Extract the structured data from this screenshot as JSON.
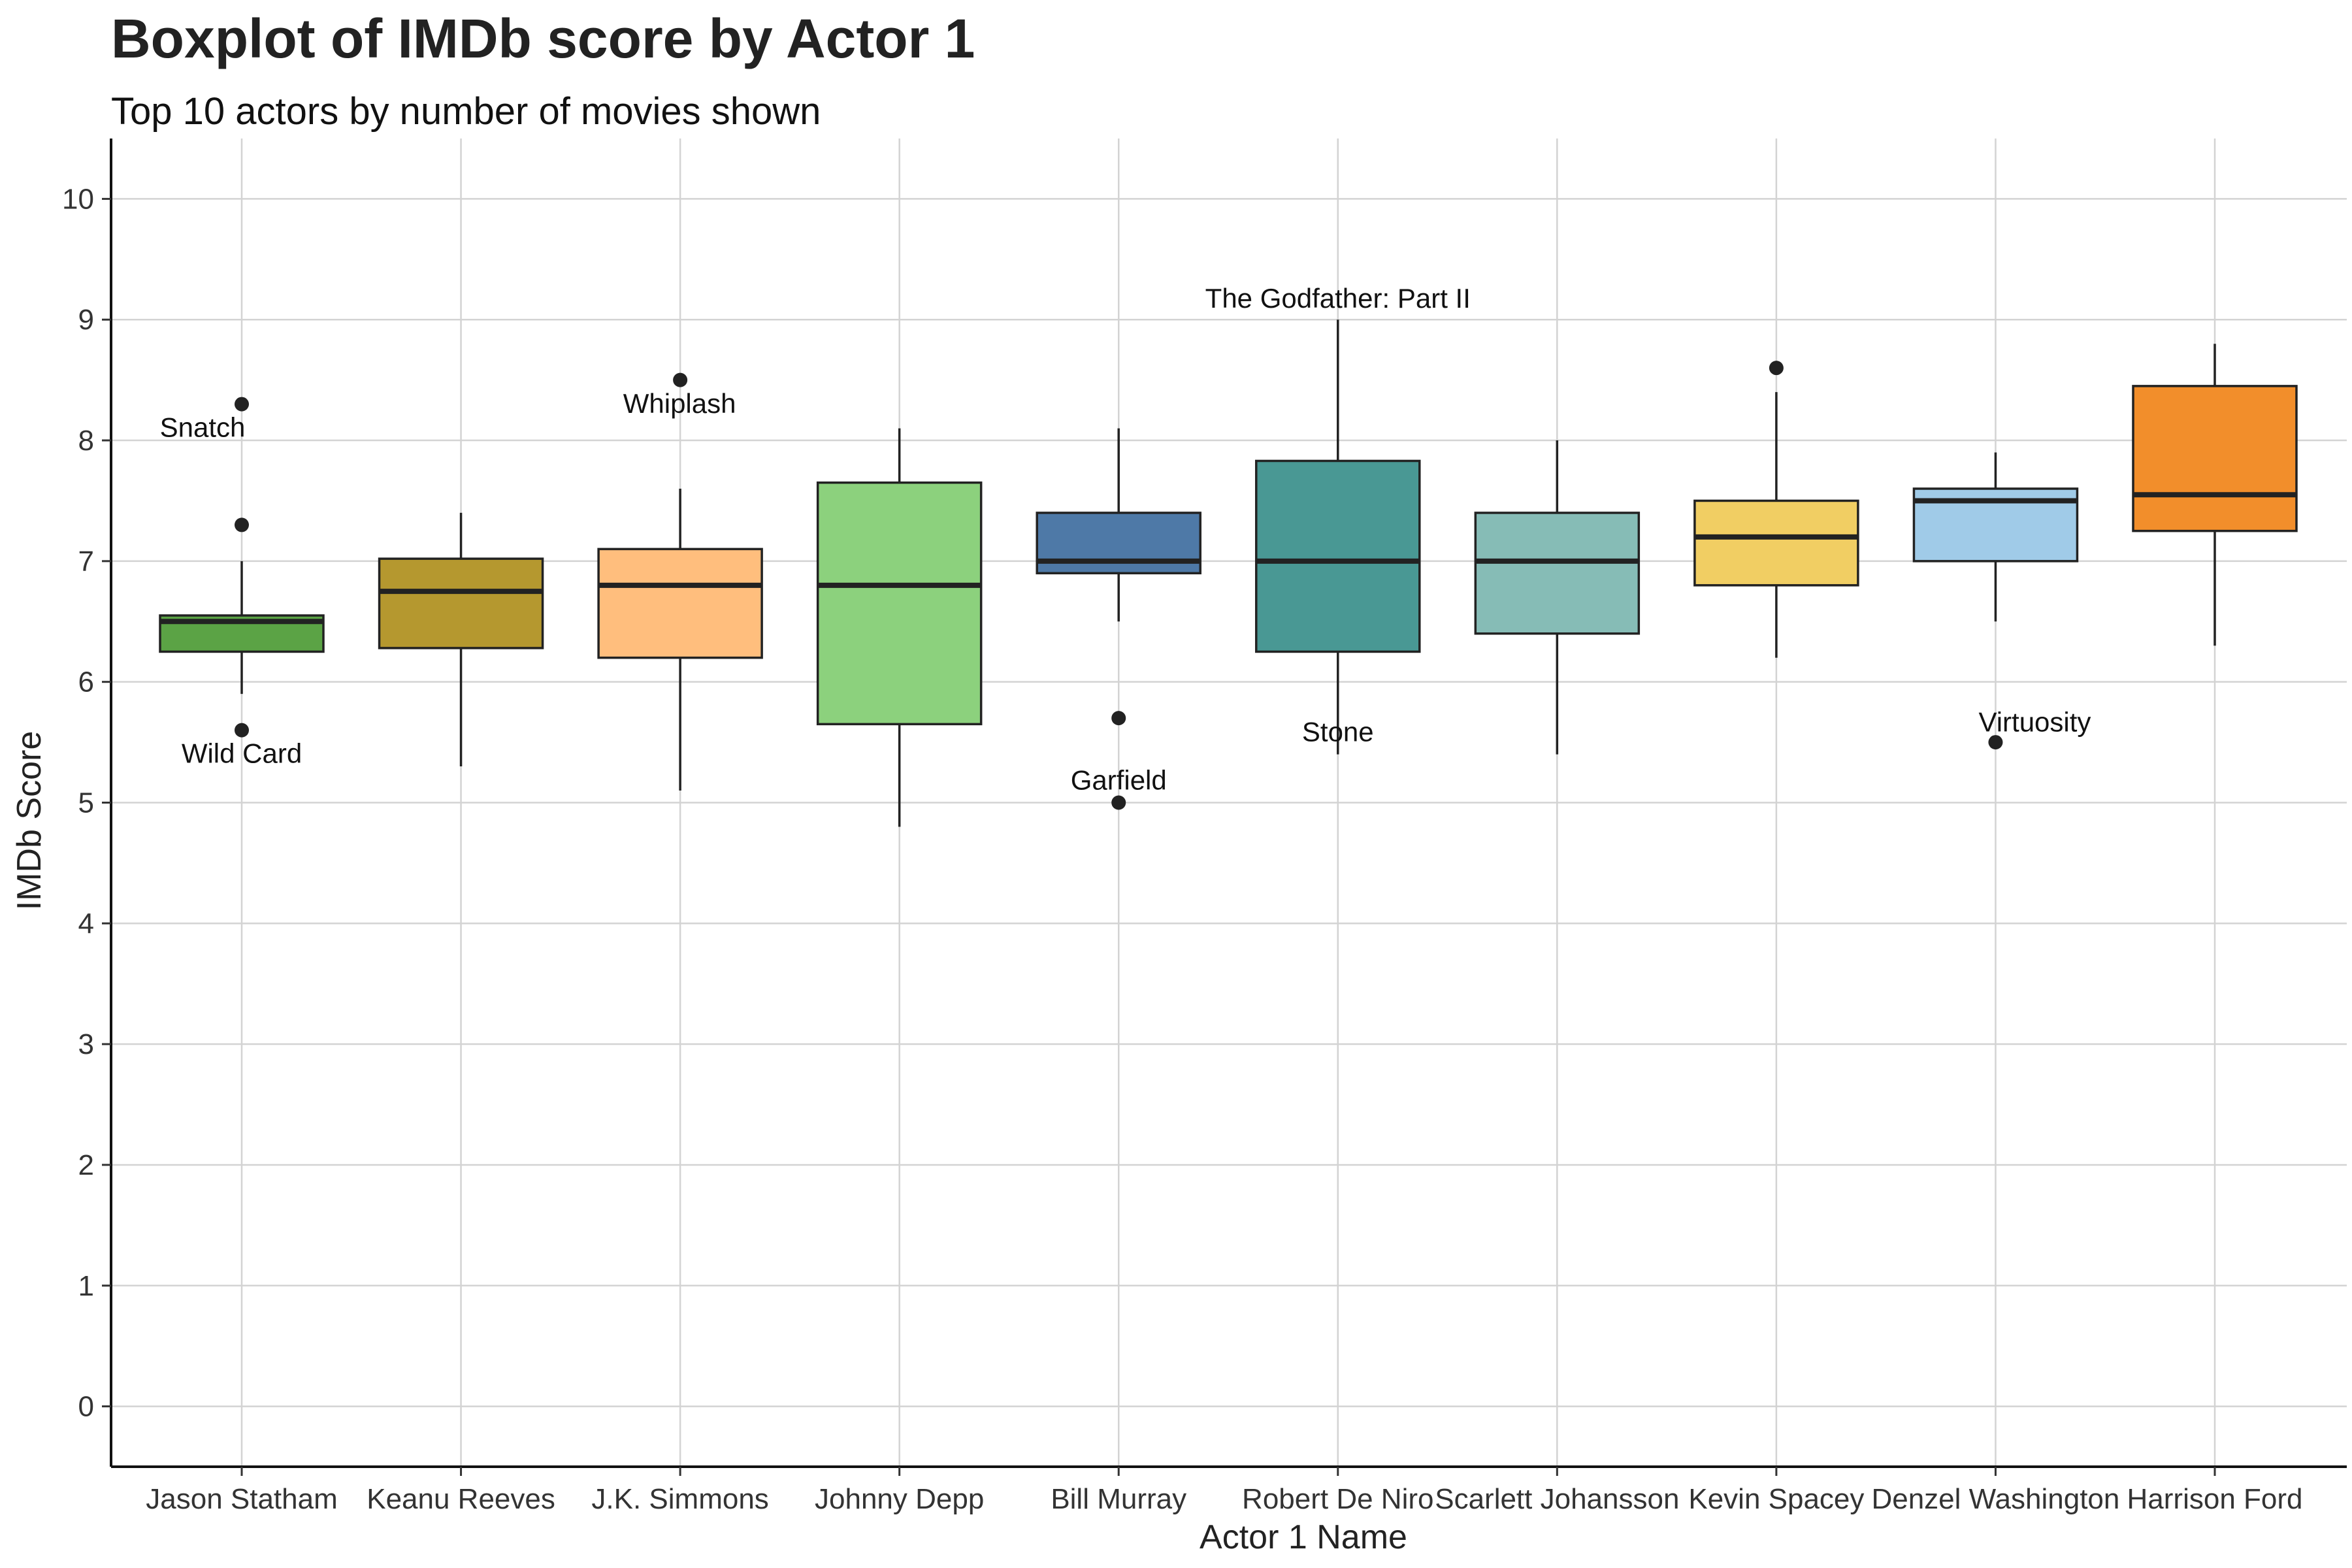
{
  "chart_data": {
    "type": "boxplot",
    "title": "Boxplot of IMDb score by Actor 1",
    "subtitle": "Top 10 actors by number of movies shown",
    "xlabel": "Actor 1 Name",
    "ylabel": "IMDb Score",
    "ylim": [
      -0.5,
      10.5
    ],
    "yticks": [
      0,
      1,
      2,
      3,
      4,
      5,
      6,
      7,
      8,
      9,
      10
    ],
    "grid": true,
    "legend": "none",
    "categories": [
      "Jason Statham",
      "Keanu Reeves",
      "J.K. Simmons",
      "Johnny Depp",
      "Bill Murray",
      "Robert De Niro",
      "Scarlett Johansson",
      "Kevin Spacey",
      "Denzel Washington",
      "Harrison Ford"
    ],
    "boxes": [
      {
        "actor": "Jason Statham",
        "whisker_low": 5.9,
        "q1": 6.25,
        "median": 6.5,
        "q3": 6.55,
        "whisker_high": 7.0,
        "outliers": [
          8.3,
          7.3,
          5.6
        ],
        "color": "#5BA345"
      },
      {
        "actor": "Keanu Reeves",
        "whisker_low": 5.3,
        "q1": 6.28,
        "median": 6.75,
        "q3": 7.02,
        "whisker_high": 7.4,
        "outliers": [],
        "color": "#B5982F"
      },
      {
        "actor": "J.K. Simmons",
        "whisker_low": 5.1,
        "q1": 6.2,
        "median": 6.8,
        "q3": 7.1,
        "whisker_high": 7.6,
        "outliers": [
          8.5
        ],
        "color": "#FFBE7D"
      },
      {
        "actor": "Johnny Depp",
        "whisker_low": 4.8,
        "q1": 5.65,
        "median": 6.8,
        "q3": 7.65,
        "whisker_high": 8.1,
        "outliers": [],
        "color": "#8CD17D"
      },
      {
        "actor": "Bill Murray",
        "whisker_low": 6.5,
        "q1": 6.9,
        "median": 7.0,
        "q3": 7.4,
        "whisker_high": 8.1,
        "outliers": [
          5.7,
          5.0
        ],
        "color": "#4E79A7"
      },
      {
        "actor": "Robert De Niro",
        "whisker_low": 5.4,
        "q1": 6.25,
        "median": 7.0,
        "q3": 7.83,
        "whisker_high": 9.0,
        "outliers": [],
        "color": "#499894"
      },
      {
        "actor": "Scarlett Johansson",
        "whisker_low": 5.4,
        "q1": 6.4,
        "median": 7.0,
        "q3": 7.4,
        "whisker_high": 8.0,
        "outliers": [],
        "color": "#86BCB6"
      },
      {
        "actor": "Kevin Spacey",
        "whisker_low": 6.2,
        "q1": 6.8,
        "median": 7.2,
        "q3": 7.5,
        "whisker_high": 8.4,
        "outliers": [
          8.6
        ],
        "color": "#F1CE63"
      },
      {
        "actor": "Denzel Washington",
        "whisker_low": 6.5,
        "q1": 7.0,
        "median": 7.5,
        "q3": 7.6,
        "whisker_high": 7.9,
        "outliers": [
          5.5
        ],
        "color": "#A0CBE8"
      },
      {
        "actor": "Harrison Ford",
        "whisker_low": 6.3,
        "q1": 7.25,
        "median": 7.55,
        "q3": 8.45,
        "whisker_high": 8.8,
        "outliers": [],
        "color": "#F28E2B"
      }
    ],
    "annotations": [
      {
        "label": "Snatch",
        "actor": "Jason Statham",
        "y": 8.3
      },
      {
        "label": "Wild Card",
        "actor": "Jason Statham",
        "y": 5.6
      },
      {
        "label": "Whiplash",
        "actor": "J.K. Simmons",
        "y": 8.5
      },
      {
        "label": "Garfield",
        "actor": "Bill Murray",
        "y": 5.0
      },
      {
        "label": "The Godfather: Part II",
        "actor": "Robert De Niro",
        "y": 9.0
      },
      {
        "label": "Stone",
        "actor": "Robert De Niro",
        "y": 5.4
      },
      {
        "label": "Virtuosity",
        "actor": "Denzel Washington",
        "y": 5.5
      }
    ]
  }
}
